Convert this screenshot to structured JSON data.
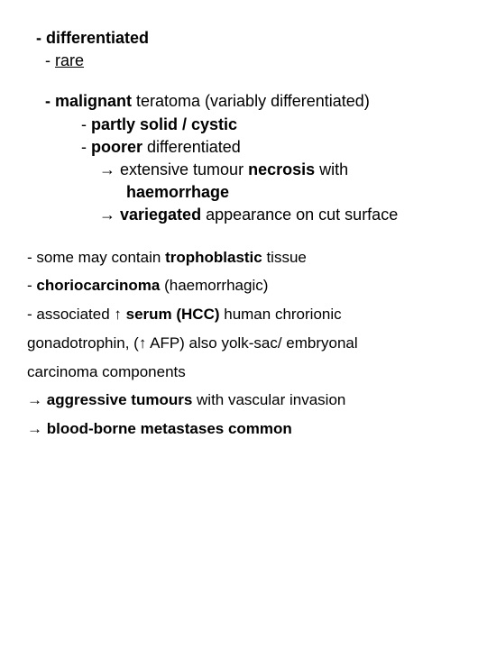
{
  "blockA": {
    "l1": "- differentiated",
    "l2_prefix": "-  ",
    "l2_text": "rare",
    "l3_prefix": "- ",
    "l3_b": "malignant",
    "l3_rest": " teratoma (variably differentiated)",
    "l4_prefix": "- ",
    "l4_b": "partly solid / cystic",
    "l5_prefix": "- ",
    "l5_b": "poorer",
    "l5_rest": " differentiated",
    "l6_arrow": "→",
    "l6_rest1": " extensive tumour ",
    "l6_b": "necrosis",
    "l6_rest2": " with",
    "l7_b": "haemorrhage",
    "l8_arrow": "→",
    "l8_rest1": " ",
    "l8_b": "variegated",
    "l8_rest2": " appearance on cut surface"
  },
  "blockB": {
    "b1_prefix": "- some may contain ",
    "b1_b": "trophoblastic",
    "b1_rest": " tissue",
    "b2_prefix": "- ",
    "b2_b": "choriocarcinoma",
    "b2_rest": " (haemorrhagic)",
    "b3_prefix": "- associated ",
    "b3_arrow": "↑",
    "b3_b": "  serum (HCC)",
    "b3_rest": " human chrorionic",
    "b4_prefix": " gonadotrophin,   (",
    "b4_arrow": "↑",
    "b4_rest": " AFP) also yolk-sac/ embryonal",
    "b5": " carcinoma components",
    "b6_arrow": "→",
    "b6_rest1": " ",
    "b6_b": "aggressive tumours",
    "b6_rest2": " with vascular invasion",
    "b7_arrow": "→",
    "b7_rest1": " ",
    "b7_b": "blood-borne metastases common"
  }
}
